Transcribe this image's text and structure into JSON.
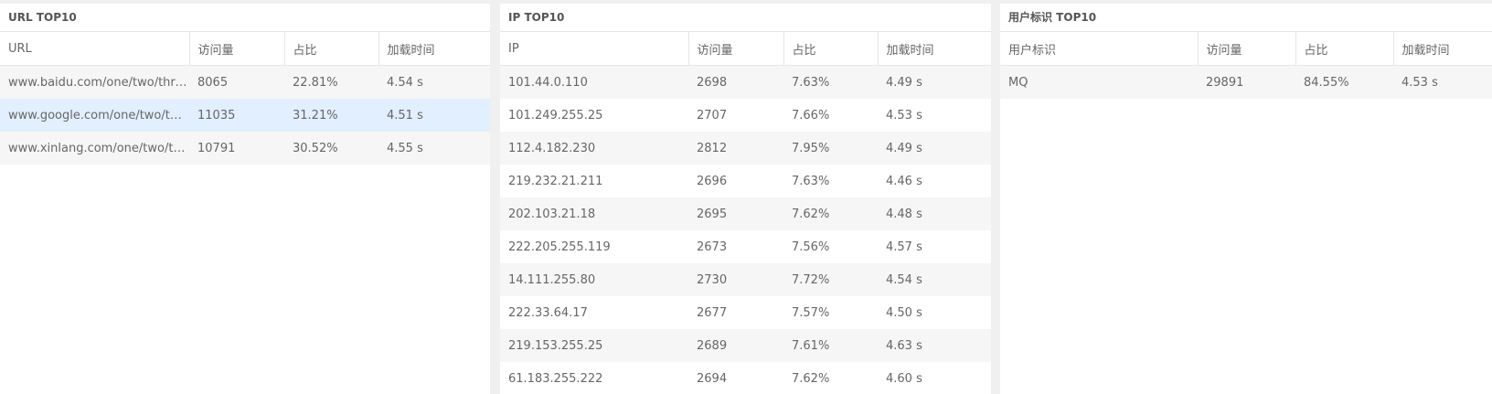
{
  "url_panel": {
    "title": "URL TOP10",
    "columns": [
      "URL",
      "访问量",
      "占比",
      "加载时间"
    ],
    "rows": [
      [
        "www.baidu.com/one/two/three/...",
        "8065",
        "22.81%",
        "4.54 s"
      ],
      [
        "www.google.com/one/two/three...",
        "11035",
        "31.21%",
        "4.51 s"
      ],
      [
        "www.xinlang.com/one/two/three...",
        "10791",
        "30.52%",
        "4.55 s"
      ]
    ]
  },
  "ip_panel": {
    "title": "IP TOP10",
    "columns": [
      "IP",
      "访问量",
      "占比",
      "加载时间"
    ],
    "rows": [
      [
        "101.44.0.110",
        "2698",
        "7.63%",
        "4.49 s"
      ],
      [
        "101.249.255.25",
        "2707",
        "7.66%",
        "4.53 s"
      ],
      [
        "112.4.182.230",
        "2812",
        "7.95%",
        "4.49 s"
      ],
      [
        "219.232.21.211",
        "2696",
        "7.63%",
        "4.46 s"
      ],
      [
        "202.103.21.18",
        "2695",
        "7.62%",
        "4.48 s"
      ],
      [
        "222.205.255.119",
        "2673",
        "7.56%",
        "4.57 s"
      ],
      [
        "14.111.255.80",
        "2730",
        "7.72%",
        "4.54 s"
      ],
      [
        "222.33.64.17",
        "2677",
        "7.57%",
        "4.50 s"
      ],
      [
        "219.153.255.25",
        "2689",
        "7.61%",
        "4.63 s"
      ],
      [
        "61.183.255.222",
        "2694",
        "7.62%",
        "4.60 s"
      ]
    ]
  },
  "user_panel": {
    "title": "用户标识 TOP10",
    "columns": [
      "用户标识",
      "访问量",
      "占比",
      "加载时间"
    ],
    "rows": [
      [
        "MQ",
        "29891",
        "84.55%",
        "4.53 s"
      ]
    ]
  }
}
